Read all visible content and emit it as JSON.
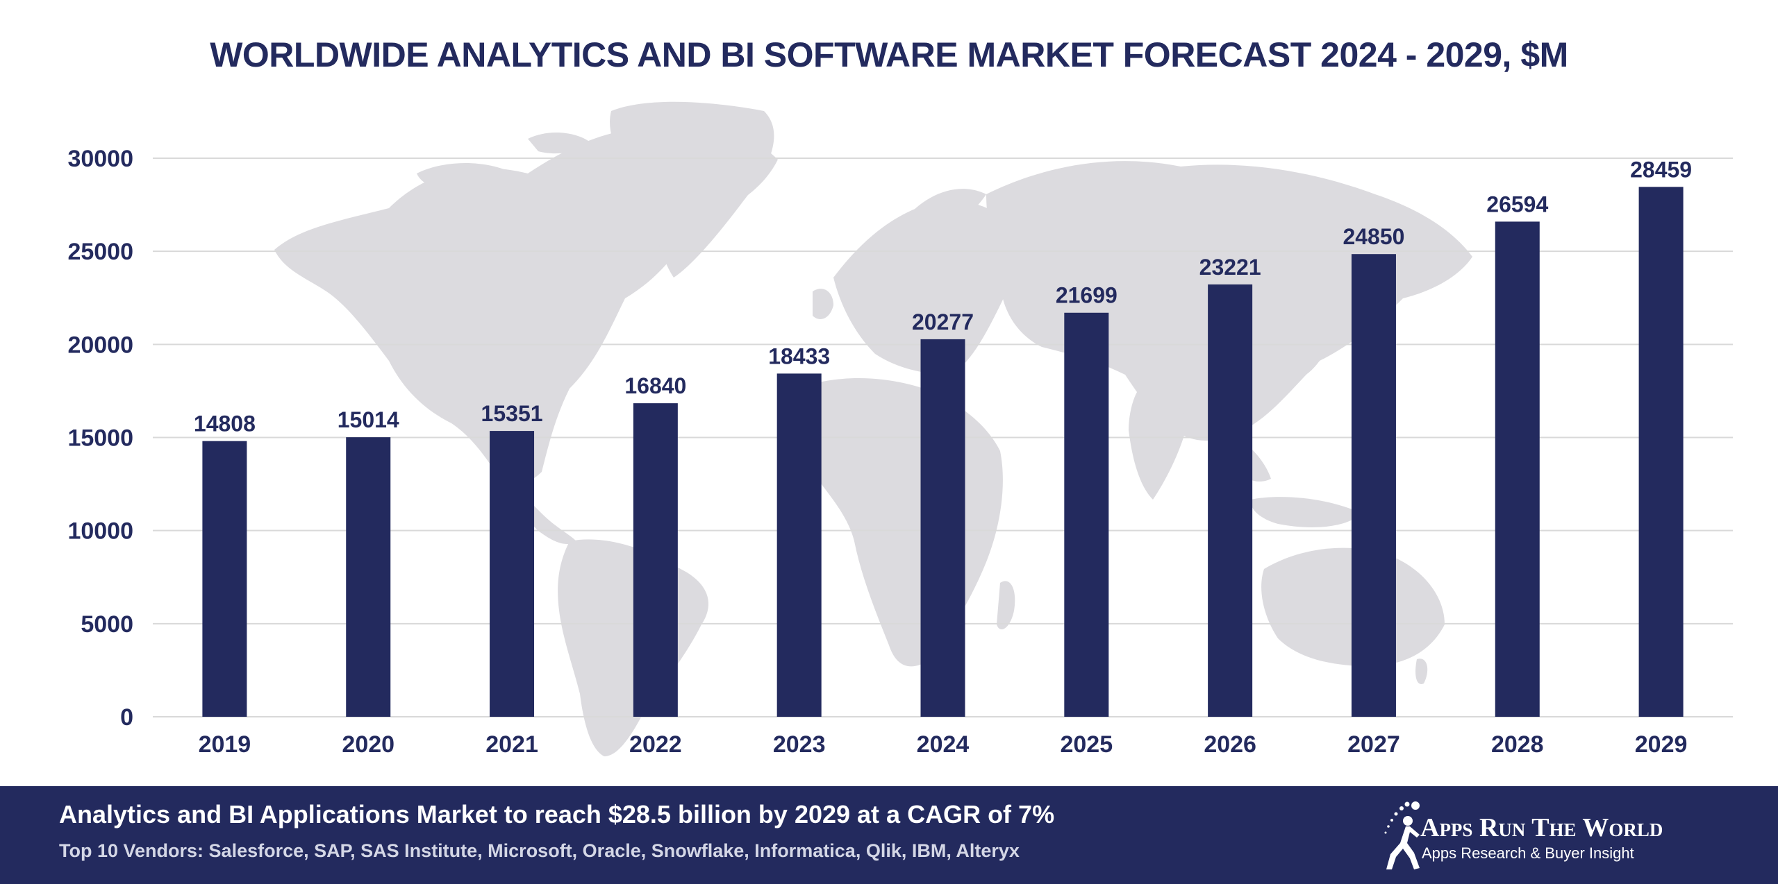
{
  "chart_data": {
    "type": "bar",
    "title": "WORLDWIDE ANALYTICS AND BI SOFTWARE MARKET FORECAST 2024 - 2029, $M",
    "xlabel": "",
    "ylabel": "",
    "categories": [
      "2019",
      "2020",
      "2021",
      "2022",
      "2023",
      "2024",
      "2025",
      "2026",
      "2027",
      "2028",
      "2029"
    ],
    "values": [
      14808,
      15014,
      15351,
      16840,
      18433,
      20277,
      21699,
      23221,
      24850,
      26594,
      28459
    ],
    "data_labels": [
      "14808",
      "15014",
      "15351",
      "16840",
      "18433",
      "20277",
      "21699",
      "23221",
      "24850",
      "26594",
      "28459"
    ],
    "ylim": [
      0,
      30000
    ],
    "yticks": [
      0,
      5000,
      10000,
      15000,
      20000,
      25000,
      30000
    ],
    "ytick_labels": [
      "0",
      "5000",
      "10000",
      "15000",
      "20000",
      "25000",
      "30000"
    ],
    "grid": true,
    "legend": "none",
    "bar_color": "#232a5e",
    "background": "world-map-silhouette"
  },
  "footer": {
    "headline": "Analytics and BI Applications Market to reach $28.5 billion by 2029 at a CAGR of 7%",
    "vendors": "Top 10 Vendors: Salesforce, SAP, SAS Institute, Microsoft, Oracle, Snowflake, Informatica, Qlik, IBM, Alteryx"
  },
  "brand": {
    "name": "Apps Run The World",
    "tagline": "Apps Research & Buyer Insight",
    "logo_icon": "running-figure-icon"
  },
  "colors": {
    "navy": "#232a5e",
    "gridline": "#d9d9d9",
    "map": "#dcdbdf"
  }
}
